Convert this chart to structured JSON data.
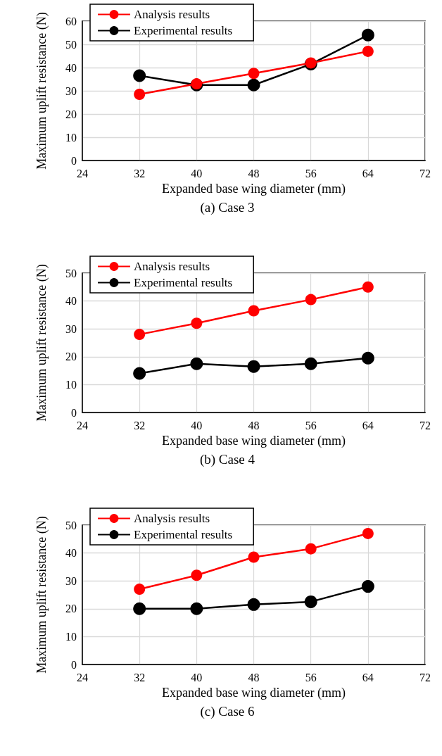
{
  "chart_data": [
    {
      "type": "line",
      "title": "(a) Case 3",
      "xlabel": "Expanded base wing diameter (mm)",
      "ylabel": "Maximum uplift resistance (N)",
      "xlim": [
        24,
        72
      ],
      "xticks": [
        24,
        32,
        40,
        48,
        56,
        64,
        72
      ],
      "ylim": [
        0,
        60
      ],
      "yticks": [
        0,
        10,
        20,
        30,
        40,
        50,
        60
      ],
      "grid": true,
      "legend": "top left",
      "marker": "circle",
      "x": [
        32,
        40,
        48,
        56,
        64
      ],
      "series": [
        {
          "name": "Analysis results",
          "color": "#ff0000",
          "values": [
            28.5,
            33,
            37.5,
            42,
            47
          ]
        },
        {
          "name": "Experimental results",
          "color": "#000000",
          "values": [
            36.5,
            32.5,
            32.5,
            41.5,
            54
          ]
        }
      ]
    },
    {
      "type": "line",
      "title": "(b) Case 4",
      "xlabel": "Expanded base wing diameter (mm)",
      "ylabel": "Maximum uplift resistance (N)",
      "xlim": [
        24,
        72
      ],
      "xticks": [
        24,
        32,
        40,
        48,
        56,
        64,
        72
      ],
      "ylim": [
        0,
        50
      ],
      "yticks": [
        0,
        10,
        20,
        30,
        40,
        50
      ],
      "grid": true,
      "legend": "top left",
      "marker": "circle",
      "x": [
        32,
        40,
        48,
        56,
        64
      ],
      "series": [
        {
          "name": "Analysis results",
          "color": "#ff0000",
          "values": [
            28,
            32,
            36.5,
            40.5,
            45
          ]
        },
        {
          "name": "Experimental results",
          "color": "#000000",
          "values": [
            14,
            17.5,
            16.5,
            17.5,
            19.5
          ]
        }
      ]
    },
    {
      "type": "line",
      "title": "(c) Case 6",
      "xlabel": "Expanded base wing diameter (mm)",
      "ylabel": "Maximum uplift resistance (N)",
      "xlim": [
        24,
        72
      ],
      "xticks": [
        24,
        32,
        40,
        48,
        56,
        64,
        72
      ],
      "ylim": [
        0,
        50
      ],
      "yticks": [
        0,
        10,
        20,
        30,
        40,
        50
      ],
      "grid": true,
      "legend": "top left",
      "marker": "circle",
      "x": [
        32,
        40,
        48,
        56,
        64
      ],
      "series": [
        {
          "name": "Analysis results",
          "color": "#ff0000",
          "values": [
            27,
            32,
            38.5,
            41.5,
            47
          ]
        },
        {
          "name": "Experimental results",
          "color": "#000000",
          "values": [
            20,
            20,
            21.5,
            22.5,
            28
          ]
        }
      ]
    }
  ]
}
